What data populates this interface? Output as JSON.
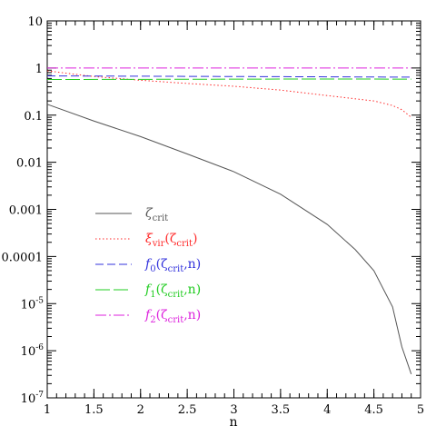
{
  "chart_data": {
    "type": "line",
    "title": "",
    "xlabel": "n",
    "ylabel": "",
    "xlim": [
      1,
      5
    ],
    "ylim": [
      1e-07,
      10
    ],
    "yscale": "log",
    "grid": false,
    "legend_placement": "middle-left",
    "x_ticks": [
      {
        "value": 1,
        "label": "1"
      },
      {
        "value": 1.5,
        "label": "1.5"
      },
      {
        "value": 2,
        "label": "2"
      },
      {
        "value": 2.5,
        "label": "2.5"
      },
      {
        "value": 3,
        "label": "3"
      },
      {
        "value": 3.5,
        "label": "3.5"
      },
      {
        "value": 4,
        "label": "4"
      },
      {
        "value": 4.5,
        "label": "4.5"
      },
      {
        "value": 5,
        "label": "5"
      }
    ],
    "y_ticks": [
      {
        "value": 10,
        "label": "10"
      },
      {
        "value": 1,
        "label": "1"
      },
      {
        "value": 0.1,
        "label": "0.1"
      },
      {
        "value": 0.01,
        "label": "0.01"
      },
      {
        "value": 0.001,
        "label": "0.001"
      },
      {
        "value": 0.0001,
        "label": "0.0001"
      },
      {
        "value": 1e-05,
        "label": "10",
        "exp": "-5"
      },
      {
        "value": 1e-06,
        "label": "10",
        "exp": "-6"
      },
      {
        "value": 1e-07,
        "label": "10",
        "exp": "-7"
      }
    ],
    "series": [
      {
        "legend": {
          "main": "ζ",
          "sub": "crit",
          "suffix": ""
        },
        "color": "#555555",
        "dash": "solid",
        "x": [
          1,
          1.5,
          2,
          2.5,
          3,
          3.5,
          4,
          4.3,
          4.5,
          4.7,
          4.8,
          4.9
        ],
        "y": [
          0.17,
          0.075,
          0.035,
          0.015,
          0.0063,
          0.0021,
          0.00048,
          0.00014,
          5e-05,
          8.5e-06,
          1.2e-06,
          3.2e-07
        ]
      },
      {
        "legend": {
          "main": "ξ",
          "sub": "vir",
          "suffix": "(ζ_crit)"
        },
        "color": "#ff2a2a",
        "dash": "dotted",
        "x": [
          1,
          1.5,
          2,
          2.5,
          3,
          3.5,
          4,
          4.5,
          4.7,
          4.8,
          4.9
        ],
        "y": [
          0.87,
          0.66,
          0.55,
          0.47,
          0.41,
          0.34,
          0.26,
          0.2,
          0.16,
          0.13,
          0.09
        ]
      },
      {
        "legend": {
          "main": "f",
          "sub": "0",
          "suffix": "(ζ_crit,n)"
        },
        "color": "#3333dd",
        "dash": "dashed",
        "x": [
          1,
          2,
          3,
          4,
          4.9
        ],
        "y": [
          0.68,
          0.67,
          0.66,
          0.65,
          0.64
        ]
      },
      {
        "legend": {
          "main": "f",
          "sub": "1",
          "suffix": "(ζ_crit,n)"
        },
        "color": "#22cc22",
        "dash": "longdash",
        "x": [
          1,
          2,
          3,
          4,
          4.9
        ],
        "y": [
          0.57,
          0.575,
          0.58,
          0.585,
          0.58
        ]
      },
      {
        "legend": {
          "main": "f",
          "sub": "2",
          "suffix": "(ζ_crit,n)"
        },
        "color": "#dd22dd",
        "dash": "dashdot",
        "x": [
          1,
          2,
          3,
          4,
          4.9
        ],
        "y": [
          1.0,
          1.0,
          1.0,
          1.0,
          1.0
        ]
      }
    ]
  }
}
